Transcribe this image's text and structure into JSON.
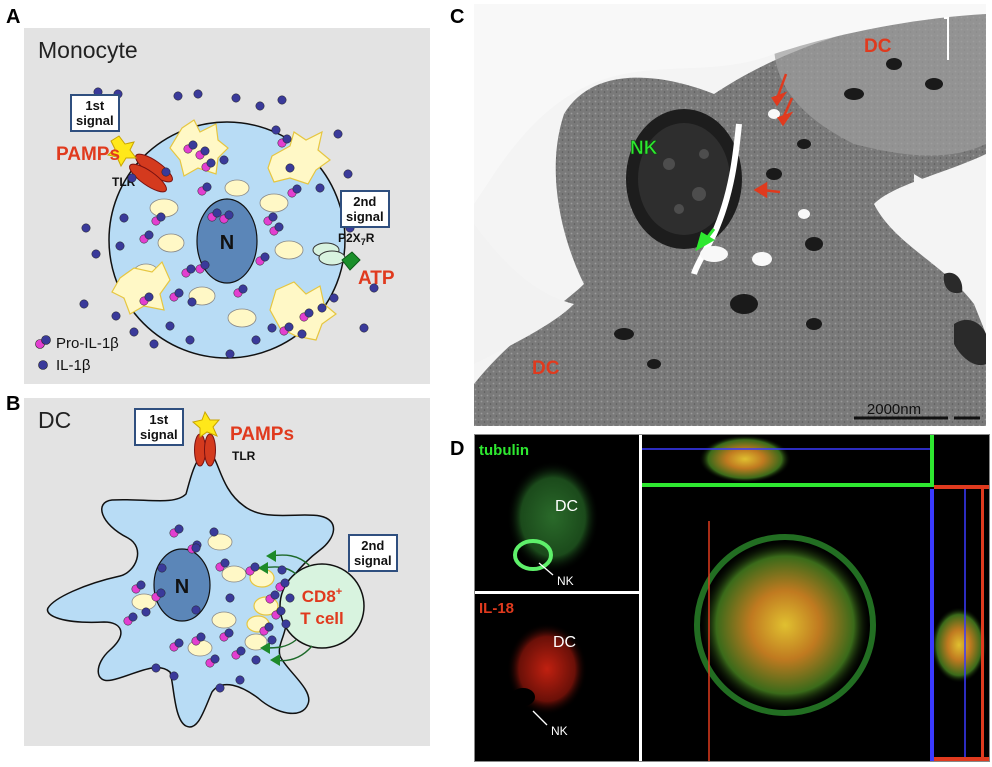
{
  "panels": {
    "a": {
      "letter": "A",
      "title": "Monocyte",
      "first_signal": [
        "1st",
        "signal"
      ],
      "second_signal": [
        "2nd",
        "signal"
      ],
      "pamps": "PAMPs",
      "tlr": "TLR",
      "receptor": "P2X",
      "receptor_sub": "7",
      "receptor_tail": "R",
      "atp": "ATP",
      "nucleus": "N",
      "legend_pro": "Pro-IL-1β",
      "legend_mature": "IL-1β"
    },
    "b": {
      "letter": "B",
      "title": "DC",
      "first_signal": [
        "1st",
        "signal"
      ],
      "second_signal": [
        "2nd",
        "signal"
      ],
      "pamps": "PAMPs",
      "tlr": "TLR",
      "nucleus": "N",
      "tcell_line1": "CD8",
      "tcell_sup": "+",
      "tcell_line2": "T cell"
    },
    "c": {
      "letter": "C",
      "label_nk": "NK",
      "label_dc_top": "DC",
      "label_dc_bottom": "DC",
      "scale": "2000nm"
    },
    "d": {
      "letter": "D",
      "tubulin_label": "tubulin",
      "il18_label": "IL-18",
      "dc_label_top": "DC",
      "dc_label_bottom": "DC",
      "nk_label_top": "NK",
      "nk_label_bottom": "NK"
    }
  },
  "colors": {
    "panel_bg": "#e3e3e3",
    "cell_blue": "#b8dcf5",
    "nucleus": "#5b86b8",
    "red_label": "#e03a1e",
    "green_label": "#2ee830",
    "signal_border": "#2f4f7f"
  }
}
